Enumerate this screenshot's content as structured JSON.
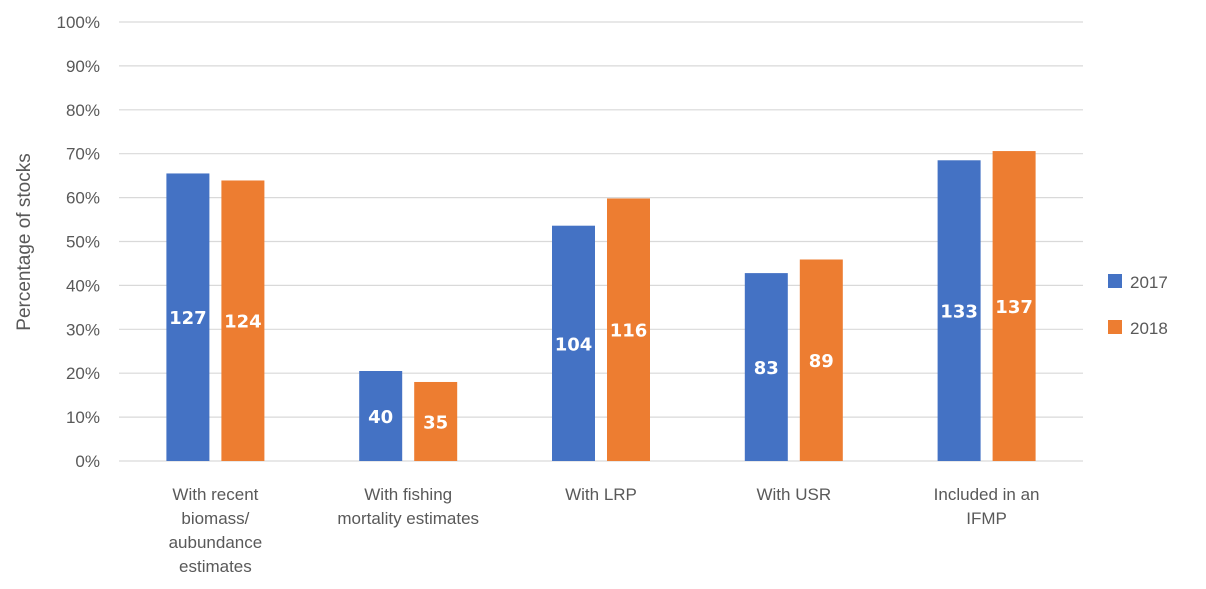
{
  "chart_data": {
    "type": "bar",
    "categories": [
      [
        "With recent",
        "biomass/",
        "aubundance",
        "estimates"
      ],
      [
        "With fishing",
        "mortality estimates"
      ],
      [
        "With LRP"
      ],
      [
        "With USR"
      ],
      [
        "Included in an",
        "IFMP"
      ]
    ],
    "series": [
      {
        "name": "2017",
        "color": "#4472C4",
        "values": [
          65.5,
          20.5,
          53.6,
          42.8,
          68.5
        ],
        "labels": [
          "127",
          "40",
          "104",
          "83",
          "133"
        ]
      },
      {
        "name": "2018",
        "color": "#ED7D31",
        "values": [
          63.9,
          18.0,
          59.8,
          45.9,
          70.6
        ],
        "labels": [
          "124",
          "35",
          "116",
          "89",
          "137"
        ]
      }
    ],
    "ylabel": "Percentage of stocks",
    "yticks": [
      "0%",
      "10%",
      "20%",
      "30%",
      "40%",
      "50%",
      "60%",
      "70%",
      "80%",
      "90%",
      "100%"
    ],
    "ylim": [
      0,
      100
    ],
    "grid": true,
    "gridColor": "#D9D9D9",
    "legend": "right"
  }
}
